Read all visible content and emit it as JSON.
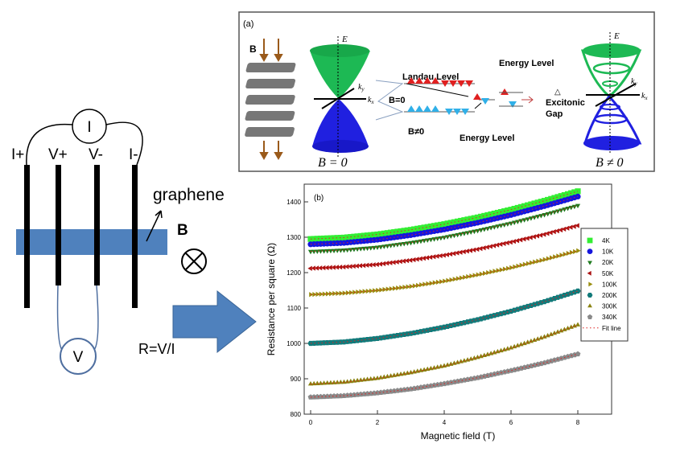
{
  "setup": {
    "current_source": "I",
    "voltmeter": "V",
    "labels": [
      "I+",
      "V+",
      "V-",
      "I-"
    ],
    "graphene_label": "graphene",
    "field_label": "B",
    "formula": "R=V/I"
  },
  "panel_a": {
    "tag": "(a)",
    "field_label": "B",
    "axis_E": "E",
    "axis_ky": "k",
    "axis_ky_sub": "y",
    "axis_kx": "k",
    "axis_kx_sub": "x",
    "landau_level": "Landau Level",
    "energy_level_top": "Energy Level",
    "energy_level_bottom": "Energy Level",
    "b_zero_small": "B=0",
    "b_nonzero_small": "B≠0",
    "delta": "△",
    "excitonic": "Excitonic",
    "gap": "Gap",
    "b_zero_caption": "B = 0",
    "b_nonzero_caption": "B ≠ 0",
    "colors": {
      "conduction": "#1db954",
      "valence": "#2020e0",
      "spin_up": "#e02020",
      "spin_down": "#30b0e8"
    }
  },
  "chart_data": {
    "type": "scatter",
    "tag": "(b)",
    "xlabel": "Magnetic field (T)",
    "ylabel": "Resistance per square (Ω)",
    "ylabel_text": "Resistance per square (",
    "ylabel_unit": "Ω",
    "xlim": [
      0,
      8
    ],
    "ylim": [
      800,
      1440
    ],
    "xticks": [
      0,
      2,
      4,
      6,
      8
    ],
    "yticks": [
      800,
      900,
      1000,
      1100,
      1200,
      1300,
      1400
    ],
    "legend_position": "right",
    "x": [
      0,
      1,
      2,
      3,
      4,
      5,
      6,
      7,
      8
    ],
    "series": [
      {
        "name": "4K",
        "color": "#33ee33",
        "marker": "square",
        "values": [
          1295,
          1299,
          1308,
          1321,
          1337,
          1356,
          1378,
          1403,
          1430
        ]
      },
      {
        "name": "10K",
        "color": "#1515dd",
        "marker": "circle",
        "values": [
          1280,
          1284,
          1293,
          1306,
          1322,
          1341,
          1363,
          1388,
          1415
        ]
      },
      {
        "name": "20K",
        "color": "#1e7a1e",
        "marker": "triangle-down",
        "values": [
          1260,
          1264,
          1272,
          1285,
          1300,
          1319,
          1340,
          1364,
          1390
        ]
      },
      {
        "name": "50K",
        "color": "#aa1111",
        "marker": "triangle-left",
        "values": [
          1212,
          1216,
          1223,
          1235,
          1249,
          1266,
          1286,
          1308,
          1333
        ]
      },
      {
        "name": "100K",
        "color": "#9a8e10",
        "marker": "triangle-right",
        "values": [
          1138,
          1142,
          1150,
          1161,
          1176,
          1194,
          1214,
          1237,
          1262
        ]
      },
      {
        "name": "200K",
        "color": "#127a7a",
        "marker": "hexagon",
        "values": [
          1000,
          1004,
          1014,
          1028,
          1046,
          1067,
          1091,
          1118,
          1148
        ]
      },
      {
        "name": "300K",
        "color": "#8a8210",
        "marker": "triangle-up",
        "values": [
          885,
          890,
          901,
          917,
          936,
          960,
          987,
          1018,
          1052
        ]
      },
      {
        "name": "340K",
        "color": "#8a8a8a",
        "marker": "pentagon",
        "values": [
          848,
          852,
          860,
          871,
          886,
          903,
          923,
          945,
          970
        ]
      }
    ],
    "fit_line": {
      "name": "Fit line",
      "color": "#dd2222",
      "style": "dotted"
    }
  }
}
